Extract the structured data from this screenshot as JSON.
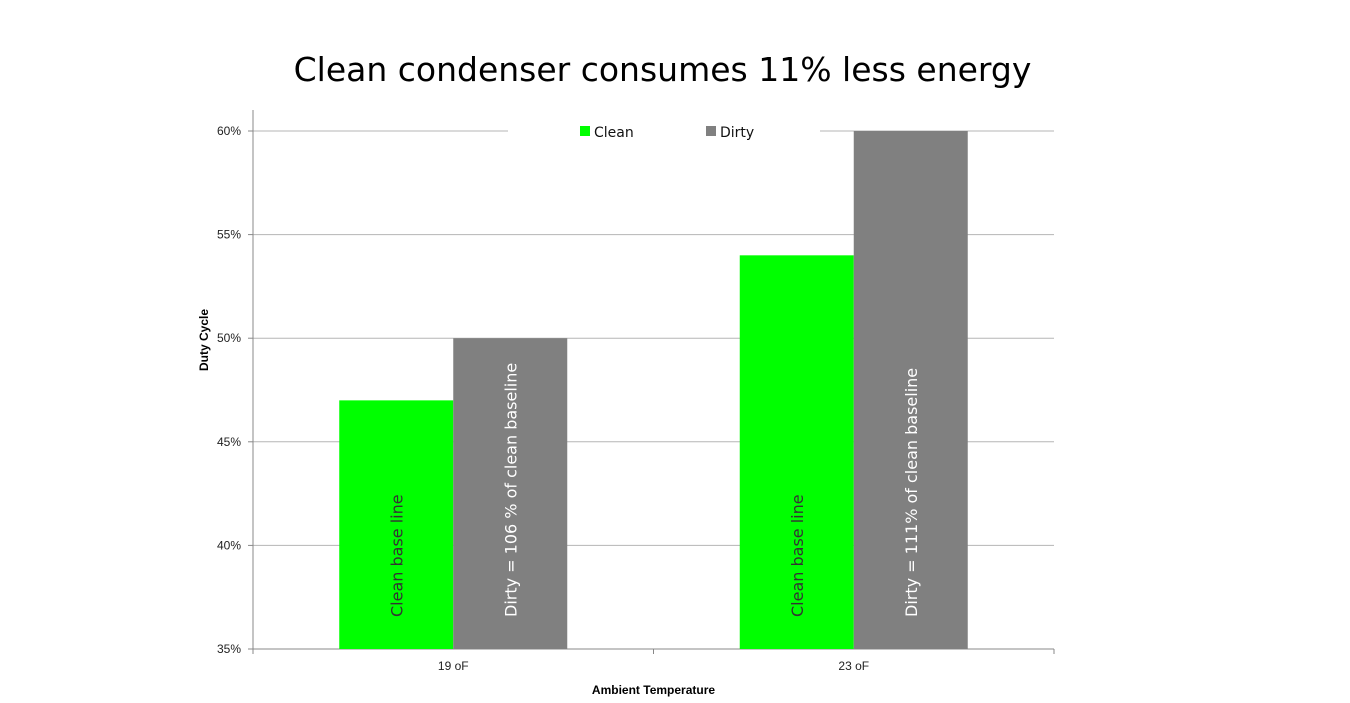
{
  "chart_data": {
    "type": "bar",
    "title": "Clean condenser consumes 11% less energy",
    "xlabel": "Ambient Temperature",
    "ylabel": "Duty Cycle",
    "categories": [
      "19 oF",
      "23 oF"
    ],
    "series": [
      {
        "name": "Clean",
        "values": [
          47,
          54
        ],
        "labels": [
          "Clean base line",
          "Clean base line"
        ]
      },
      {
        "name": "Dirty",
        "values": [
          50,
          60
        ],
        "labels": [
          "Dirty = 106 % of clean baseline",
          "Dirty = 111% of clean baseline"
        ]
      }
    ],
    "ylim": [
      35,
      60
    ],
    "yticks": [
      "35%",
      "40%",
      "45%",
      "50%",
      "55%",
      "60%"
    ],
    "ytick_values": [
      35,
      40,
      45,
      50,
      55,
      60
    ],
    "grid": true,
    "legend": "top-center",
    "colors": {
      "Clean": "#00ff00",
      "Dirty": "#808080"
    },
    "label_colors": {
      "Clean": "#333333",
      "Dirty": "#ffffff"
    }
  }
}
